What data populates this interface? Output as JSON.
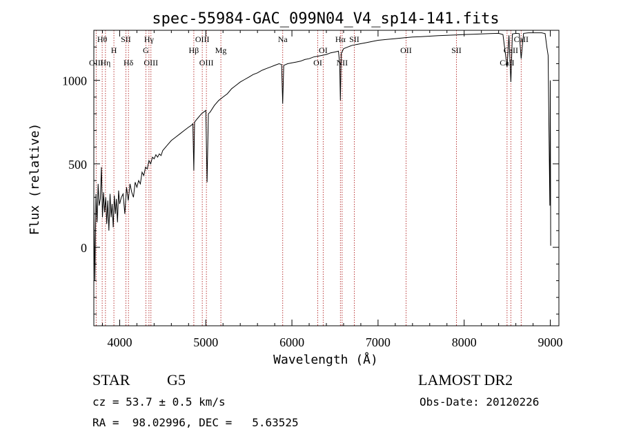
{
  "chart_data": {
    "type": "line",
    "title": "spec-55984-GAC_099N04_V4_sp14-141.fits",
    "xlabel": "Wavelength (Å)",
    "ylabel": "Flux (relative)",
    "xlim": [
      3700,
      9100
    ],
    "ylim": [
      -470,
      1300
    ],
    "xticks": [
      4000,
      5000,
      6000,
      7000,
      8000,
      9000
    ],
    "yticks": [
      0,
      500,
      1000
    ],
    "grid": false,
    "series": [
      {
        "x": [
          3700,
          3712,
          3725,
          3738,
          3750,
          3762,
          3775,
          3788,
          3800,
          3812,
          3825,
          3838,
          3850,
          3862,
          3875,
          3888,
          3900,
          3912,
          3925,
          3938,
          3950,
          3962,
          3975,
          3988,
          4000,
          4020,
          4040,
          4060,
          4080,
          4100,
          4120,
          4140,
          4160,
          4180,
          4200,
          4220,
          4240,
          4260,
          4280,
          4300,
          4320,
          4340,
          4360,
          4380,
          4400,
          4420,
          4440,
          4460,
          4480,
          4500,
          4550,
          4600,
          4650,
          4700,
          4750,
          4800,
          4830,
          4850,
          4861,
          4870,
          4900,
          4950,
          5000,
          5015,
          5030,
          5050,
          5100,
          5150,
          5200,
          5250,
          5300,
          5350,
          5400,
          5450,
          5500,
          5550,
          5600,
          5650,
          5700,
          5750,
          5800,
          5850,
          5880,
          5893,
          5905,
          5950,
          6000,
          6050,
          6100,
          6150,
          6200,
          6250,
          6300,
          6350,
          6400,
          6450,
          6500,
          6540,
          6555,
          6563,
          6572,
          6600,
          6650,
          6700,
          6750,
          6800,
          6850,
          6900,
          6950,
          7000,
          7100,
          7200,
          7300,
          7400,
          7500,
          7600,
          7700,
          7800,
          7900,
          8000,
          8100,
          8200,
          8300,
          8400,
          8450,
          8498,
          8520,
          8542,
          8560,
          8600,
          8640,
          8662,
          8690,
          8750,
          8800,
          8850,
          8900,
          8940,
          8960,
          8975,
          8985,
          8995,
          9000,
          9005
        ],
        "values": [
          280,
          -200,
          320,
          150,
          380,
          250,
          290,
          480,
          180,
          330,
          210,
          300,
          140,
          280,
          100,
          320,
          180,
          260,
          120,
          310,
          200,
          290,
          150,
          340,
          260,
          300,
          320,
          200,
          360,
          280,
          380,
          330,
          300,
          390,
          360,
          400,
          380,
          450,
          430,
          480,
          470,
          520,
          500,
          540,
          530,
          555,
          540,
          560,
          550,
          580,
          610,
          640,
          660,
          680,
          700,
          720,
          730,
          740,
          460,
          750,
          770,
          800,
          820,
          390,
          800,
          810,
          850,
          880,
          900,
          920,
          950,
          970,
          990,
          1005,
          1020,
          1035,
          1045,
          1060,
          1070,
          1080,
          1090,
          1100,
          1095,
          860,
          1090,
          1100,
          1105,
          1110,
          1115,
          1125,
          1130,
          1140,
          1145,
          1150,
          1155,
          1165,
          1170,
          1175,
          1100,
          880,
          1160,
          1190,
          1200,
          1210,
          1215,
          1220,
          1225,
          1230,
          1235,
          1240,
          1245,
          1250,
          1255,
          1260,
          1262,
          1265,
          1268,
          1270,
          1272,
          1275,
          1276,
          1278,
          1280,
          1282,
          1275,
          1080,
          1270,
          990,
          1278,
          1282,
          1280,
          1130,
          1282,
          1285,
          1285,
          1285,
          1285,
          1280,
          1200,
          1150,
          700,
          250,
          1000,
          10
        ]
      }
    ],
    "line_markers": [
      {
        "label": "Hθ",
        "wave": 3797,
        "row": 0
      },
      {
        "label": "H",
        "wave": 3933,
        "row": 1
      },
      {
        "label": "SII",
        "wave": 4072,
        "row": 0
      },
      {
        "label": "Hγ",
        "wave": 4340,
        "row": 0
      },
      {
        "label": "G",
        "wave": 4304,
        "row": 1
      },
      {
        "label": "OIII",
        "wave": 4363,
        "row": 2
      },
      {
        "label": "Hδ",
        "wave": 4102,
        "row": 2
      },
      {
        "label": "OIII",
        "wave": 3727,
        "row": 2
      },
      {
        "label": "Hη",
        "wave": 3835,
        "row": 2
      },
      {
        "label": "OIII",
        "wave": 4959,
        "row": 0
      },
      {
        "label": "Hβ",
        "wave": 4861,
        "row": 1
      },
      {
        "label": "Mg",
        "wave": 5175,
        "row": 1
      },
      {
        "label": "OIII",
        "wave": 5007,
        "row": 2
      },
      {
        "label": "Na",
        "wave": 5893,
        "row": 0
      },
      {
        "label": "OI",
        "wave": 6363,
        "row": 1
      },
      {
        "label": "OI",
        "wave": 6300,
        "row": 2
      },
      {
        "label": "Hα",
        "wave": 6563,
        "row": 0
      },
      {
        "label": "SII",
        "wave": 6724,
        "row": 0
      },
      {
        "label": "NII",
        "wave": 6583,
        "row": 2
      },
      {
        "label": "OII",
        "wave": 7325,
        "row": 1
      },
      {
        "label": "SII",
        "wave": 7910,
        "row": 1
      },
      {
        "label": "CaII",
        "wave": 8542,
        "row": 1
      },
      {
        "label": "CaII",
        "wave": 8662,
        "row": 0
      },
      {
        "label": "CaII",
        "wave": 8498,
        "row": 2
      }
    ],
    "marker_lines": [
      3727,
      3797,
      3835,
      3933,
      4072,
      4102,
      4304,
      4340,
      4363,
      4861,
      4959,
      5007,
      5175,
      5893,
      6300,
      6363,
      6563,
      6583,
      6724,
      7325,
      7910,
      8498,
      8542,
      8662
    ]
  },
  "info": {
    "object_class": "STAR",
    "subclass": "G5",
    "survey": "LAMOST DR2",
    "redshift": "cz = 53.7 ± 0.5 km/s",
    "obs_date": "Obs-Date: 20120226",
    "coords": "RA =  98.02996, DEC =   5.63525"
  }
}
